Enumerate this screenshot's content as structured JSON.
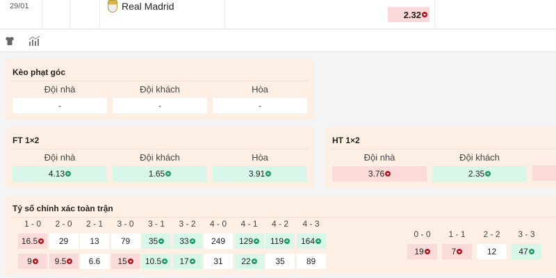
{
  "match": {
    "date": "29/01",
    "team": "Real Madrid",
    "odd": {
      "value": "2.32",
      "trend": "down"
    }
  },
  "toolbar": {
    "icons": [
      "shirt-icon",
      "stats-chart-icon"
    ]
  },
  "corner": {
    "title": "Kèo phạt góc",
    "cols": [
      {
        "label": "Đội nhà",
        "value": "-"
      },
      {
        "label": "Đội khách",
        "value": "-"
      },
      {
        "label": "Hòa",
        "value": "-"
      }
    ]
  },
  "ft": {
    "title": "FT 1×2",
    "cols": [
      {
        "label": "Đội nhà",
        "value": "4.13",
        "trend": "up"
      },
      {
        "label": "Đội khách",
        "value": "1.65",
        "trend": "up"
      },
      {
        "label": "Hòa",
        "value": "3.91",
        "trend": "up"
      }
    ]
  },
  "ht": {
    "title": "HT 1×2",
    "cols": [
      {
        "label": "Đội nhà",
        "value": "3.76",
        "trend": "down"
      },
      {
        "label": "Đội khách",
        "value": "2.35",
        "trend": "up"
      }
    ]
  },
  "score": {
    "title": "Tỷ số chính xác toàn trận",
    "home": [
      {
        "s": "1 - 0",
        "a": "16.5",
        "at": "down",
        "b": "9",
        "bt": "down"
      },
      {
        "s": "2 - 0",
        "a": "29",
        "at": "",
        "b": "9.5",
        "bt": "down"
      },
      {
        "s": "2 - 1",
        "a": "13",
        "at": "",
        "b": "6.6",
        "bt": ""
      },
      {
        "s": "3 - 0",
        "a": "79",
        "at": "",
        "b": "15",
        "bt": "down"
      },
      {
        "s": "3 - 1",
        "a": "35",
        "at": "up",
        "b": "10.5",
        "bt": "up"
      },
      {
        "s": "3 - 2",
        "a": "33",
        "at": "up",
        "b": "17",
        "bt": "up"
      },
      {
        "s": "4 - 0",
        "a": "249",
        "at": "",
        "b": "31",
        "bt": ""
      },
      {
        "s": "4 - 1",
        "a": "129",
        "at": "up",
        "b": "22",
        "bt": "up"
      },
      {
        "s": "4 - 2",
        "a": "119",
        "at": "up",
        "b": "35",
        "bt": ""
      },
      {
        "s": "4 - 3",
        "a": "164",
        "at": "up",
        "b": "89",
        "bt": ""
      }
    ],
    "draw": [
      {
        "s": "0 - 0",
        "a": "19",
        "at": "down"
      },
      {
        "s": "1 - 1",
        "a": "7",
        "at": "down"
      },
      {
        "s": "2 - 2",
        "a": "12",
        "at": ""
      },
      {
        "s": "3 - 3",
        "a": "47",
        "at": "up"
      }
    ]
  }
}
